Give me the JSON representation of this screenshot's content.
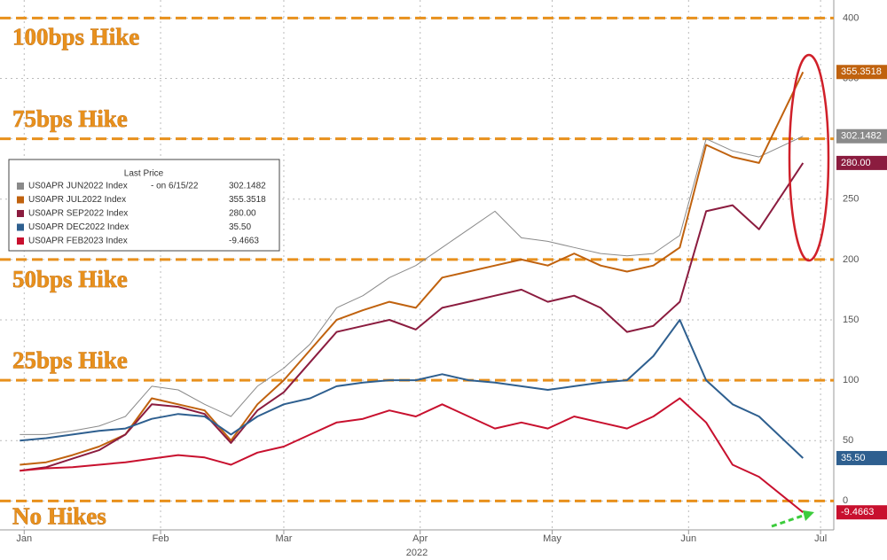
{
  "chart_data": {
    "type": "line",
    "x": [
      0,
      6,
      12,
      18,
      24,
      30,
      36,
      42,
      48,
      54,
      60,
      66,
      72,
      78,
      84,
      90,
      96,
      102,
      108,
      114,
      120,
      126,
      132,
      138,
      144,
      150,
      156,
      162,
      168,
      178
    ],
    "xlim": [
      -4.5,
      185
    ],
    "xticks": [
      {
        "value": 1,
        "label": "Jan"
      },
      {
        "value": 32,
        "label": "Feb"
      },
      {
        "value": 60,
        "label": "Mar"
      },
      {
        "value": 91,
        "label": "Apr"
      },
      {
        "value": 121,
        "label": "May"
      },
      {
        "value": 152,
        "label": "Jun"
      },
      {
        "value": 182,
        "label": "Jul"
      }
    ],
    "xlabel": "2022",
    "ylim": [
      -35,
      415
    ],
    "yticks": [
      0,
      50,
      100,
      150,
      200,
      250,
      300,
      350,
      400
    ],
    "grid": true,
    "legend_title": "Last Price",
    "legend_note": "- on 6/15/22",
    "series": [
      {
        "name": "US0APR JUN2022 Index",
        "color": "#8a8a8a",
        "values": [
          55,
          55,
          58,
          62,
          70,
          95,
          92,
          80,
          70,
          95,
          110,
          130,
          160,
          170,
          185,
          195,
          210,
          225,
          240,
          218,
          215,
          210,
          205,
          203,
          205,
          220,
          300,
          290,
          285,
          302.1482
        ],
        "value_labels": [
          null,
          null,
          null,
          null,
          null,
          null,
          null,
          null,
          null,
          null,
          null,
          null,
          null,
          null,
          null,
          null,
          null,
          null,
          null,
          null,
          null,
          null,
          null,
          null,
          null,
          null,
          null,
          null,
          null,
          "302.1482"
        ]
      },
      {
        "name": "US0APR JUL2022 Index",
        "color": "#c0620e",
        "values": [
          30,
          32,
          38,
          45,
          55,
          85,
          80,
          75,
          50,
          80,
          100,
          125,
          150,
          158,
          165,
          160,
          185,
          190,
          195,
          200,
          195,
          205,
          195,
          190,
          195,
          210,
          295,
          285,
          280,
          355.3518
        ],
        "value_labels": [
          null,
          null,
          null,
          null,
          null,
          null,
          null,
          null,
          null,
          null,
          null,
          null,
          null,
          null,
          null,
          null,
          null,
          null,
          null,
          null,
          null,
          null,
          null,
          null,
          null,
          null,
          null,
          null,
          null,
          "355.3518"
        ]
      },
      {
        "name": "US0APR SEP2022 Index",
        "color": "#8b1c3f",
        "values": [
          25,
          28,
          35,
          42,
          55,
          80,
          78,
          72,
          48,
          75,
          90,
          115,
          140,
          145,
          150,
          142,
          160,
          165,
          170,
          175,
          165,
          170,
          160,
          140,
          145,
          165,
          240,
          245,
          225,
          280
        ],
        "value_labels": [
          null,
          null,
          null,
          null,
          null,
          null,
          null,
          null,
          null,
          null,
          null,
          null,
          null,
          null,
          null,
          null,
          null,
          null,
          null,
          null,
          null,
          null,
          null,
          null,
          null,
          null,
          null,
          null,
          null,
          "280.00"
        ]
      },
      {
        "name": "US0APR DEC2022 Index",
        "color": "#2e5f8f",
        "values": [
          50,
          52,
          55,
          58,
          60,
          68,
          72,
          70,
          55,
          70,
          80,
          85,
          95,
          98,
          100,
          100,
          105,
          100,
          98,
          95,
          92,
          95,
          98,
          100,
          120,
          150,
          100,
          80,
          70,
          35.5
        ],
        "value_labels": [
          null,
          null,
          null,
          null,
          null,
          null,
          null,
          null,
          null,
          null,
          null,
          null,
          null,
          null,
          null,
          null,
          null,
          null,
          null,
          null,
          null,
          null,
          null,
          null,
          null,
          null,
          null,
          null,
          null,
          "35.50"
        ]
      },
      {
        "name": "US0APR FEB2023 Index",
        "color": "#c8102e",
        "values": [
          25,
          27,
          28,
          30,
          32,
          35,
          38,
          36,
          30,
          40,
          45,
          55,
          65,
          68,
          75,
          70,
          80,
          70,
          60,
          65,
          60,
          70,
          65,
          60,
          70,
          85,
          65,
          30,
          20,
          -9.4663
        ],
        "value_labels": [
          null,
          null,
          null,
          null,
          null,
          null,
          null,
          null,
          null,
          null,
          null,
          null,
          null,
          null,
          null,
          null,
          null,
          null,
          null,
          null,
          null,
          null,
          null,
          null,
          null,
          null,
          null,
          null,
          null,
          "-9.4663"
        ]
      }
    ],
    "reference_lines": [
      {
        "value": 0,
        "label": "No Hikes"
      },
      {
        "value": 100,
        "label": "25bps Hike"
      },
      {
        "value": 200,
        "label": "50bps Hike"
      },
      {
        "value": 300,
        "label": "75bps Hike"
      },
      {
        "value": 400,
        "label": "100bps Hike"
      }
    ]
  }
}
